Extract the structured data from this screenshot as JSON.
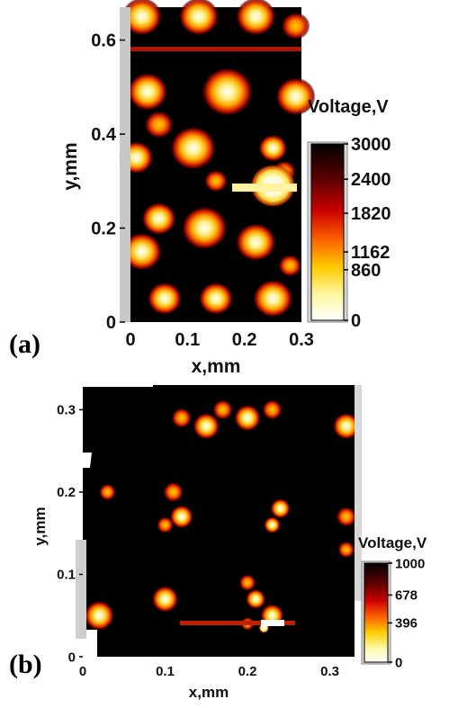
{
  "chart_data": [
    {
      "type": "heatmap",
      "panel_label": "(a)",
      "xlabel": "x,mm",
      "ylabel": "y,mm",
      "xlim": [
        0,
        0.3
      ],
      "ylim": [
        0,
        0.67
      ],
      "x_ticks": [
        "0",
        "0.1",
        "0.2",
        "0.3"
      ],
      "y_ticks": [
        "0",
        "0.2",
        "0.4",
        "0.6"
      ],
      "x_tick_values": [
        0,
        0.1,
        0.2,
        0.3
      ],
      "y_tick_values": [
        0,
        0.2,
        0.4,
        0.6
      ],
      "colorbar": {
        "title": "Voltage,V",
        "range": [
          0,
          3000
        ],
        "ticks": [
          "3000",
          "2400",
          "1820",
          "1162",
          "860",
          "0"
        ],
        "tick_values": [
          3000,
          2400,
          1820,
          1162,
          860,
          0
        ],
        "colors_low_to_high": [
          "#ffffff",
          "#fff7a0",
          "#ffcc00",
          "#ff6600",
          "#cc0000",
          "#5a0000",
          "#000000"
        ]
      },
      "background_value": 3000,
      "spots": [
        {
          "x": 0.02,
          "y": 0.65,
          "r": 0.035,
          "value": 1100
        },
        {
          "x": 0.12,
          "y": 0.65,
          "r": 0.035,
          "value": 1300
        },
        {
          "x": 0.22,
          "y": 0.65,
          "r": 0.035,
          "value": 1100
        },
        {
          "x": 0.29,
          "y": 0.63,
          "r": 0.025,
          "value": 1800
        },
        {
          "x": 0.03,
          "y": 0.49,
          "r": 0.035,
          "value": 1500
        },
        {
          "x": 0.17,
          "y": 0.49,
          "r": 0.045,
          "value": 900
        },
        {
          "x": 0.29,
          "y": 0.48,
          "r": 0.035,
          "value": 1000
        },
        {
          "x": 0.05,
          "y": 0.42,
          "r": 0.025,
          "value": 1700
        },
        {
          "x": 0.11,
          "y": 0.37,
          "r": 0.04,
          "value": 900
        },
        {
          "x": 0.25,
          "y": 0.37,
          "r": 0.025,
          "value": 1600
        },
        {
          "x": 0.27,
          "y": 0.32,
          "r": 0.02,
          "value": 2000
        },
        {
          "x": 0.01,
          "y": 0.35,
          "r": 0.03,
          "value": 1400
        },
        {
          "x": 0.15,
          "y": 0.3,
          "r": 0.02,
          "value": 1800
        },
        {
          "x": 0.25,
          "y": 0.29,
          "r": 0.04,
          "value": 800
        },
        {
          "x": 0.05,
          "y": 0.22,
          "r": 0.03,
          "value": 1400
        },
        {
          "x": 0.13,
          "y": 0.2,
          "r": 0.04,
          "value": 1000
        },
        {
          "x": 0.22,
          "y": 0.17,
          "r": 0.035,
          "value": 1000
        },
        {
          "x": 0.02,
          "y": 0.15,
          "r": 0.035,
          "value": 1100
        },
        {
          "x": 0.28,
          "y": 0.12,
          "r": 0.02,
          "value": 2000
        },
        {
          "x": 0.06,
          "y": 0.05,
          "r": 0.03,
          "value": 1300
        },
        {
          "x": 0.15,
          "y": 0.05,
          "r": 0.03,
          "value": 1300
        },
        {
          "x": 0.25,
          "y": 0.05,
          "r": 0.035,
          "value": 1100
        }
      ]
    },
    {
      "type": "heatmap",
      "panel_label": "(b)",
      "xlabel": "x,mm",
      "ylabel": "y,mm",
      "xlim": [
        0,
        0.33
      ],
      "ylim": [
        0,
        0.33
      ],
      "x_ticks": [
        "0",
        "0.1",
        "0.2",
        "0.3"
      ],
      "y_ticks": [
        "0",
        "0.1",
        "0.2",
        "0.3"
      ],
      "x_tick_values": [
        0,
        0.1,
        0.2,
        0.3
      ],
      "y_tick_values": [
        0,
        0.1,
        0.2,
        0.3
      ],
      "colorbar": {
        "title": "Voltage,V",
        "range": [
          0,
          1000
        ],
        "ticks": [
          "1000",
          "678",
          "396",
          "0"
        ],
        "tick_values": [
          1000,
          678,
          396,
          0
        ],
        "colors_low_to_high": [
          "#ffffff",
          "#fff7a0",
          "#ffcc00",
          "#ff6600",
          "#cc0000",
          "#5a0000",
          "#000000"
        ]
      },
      "background_value": 1000,
      "spots": [
        {
          "x": 0.12,
          "y": 0.29,
          "r": 0.012,
          "value": 600
        },
        {
          "x": 0.15,
          "y": 0.28,
          "r": 0.016,
          "value": 450
        },
        {
          "x": 0.17,
          "y": 0.3,
          "r": 0.012,
          "value": 600
        },
        {
          "x": 0.2,
          "y": 0.29,
          "r": 0.016,
          "value": 500
        },
        {
          "x": 0.23,
          "y": 0.3,
          "r": 0.012,
          "value": 650
        },
        {
          "x": 0.32,
          "y": 0.28,
          "r": 0.016,
          "value": 450
        },
        {
          "x": 0.03,
          "y": 0.2,
          "r": 0.01,
          "value": 750
        },
        {
          "x": 0.11,
          "y": 0.2,
          "r": 0.012,
          "value": 700
        },
        {
          "x": 0.12,
          "y": 0.17,
          "r": 0.014,
          "value": 420
        },
        {
          "x": 0.1,
          "y": 0.16,
          "r": 0.01,
          "value": 700
        },
        {
          "x": 0.24,
          "y": 0.18,
          "r": 0.012,
          "value": 550
        },
        {
          "x": 0.23,
          "y": 0.16,
          "r": 0.01,
          "value": 300
        },
        {
          "x": 0.32,
          "y": 0.17,
          "r": 0.012,
          "value": 700
        },
        {
          "x": 0.32,
          "y": 0.13,
          "r": 0.01,
          "value": 750
        },
        {
          "x": 0.02,
          "y": 0.05,
          "r": 0.018,
          "value": 450
        },
        {
          "x": 0.1,
          "y": 0.07,
          "r": 0.016,
          "value": 550
        },
        {
          "x": 0.2,
          "y": 0.09,
          "r": 0.01,
          "value": 650
        },
        {
          "x": 0.21,
          "y": 0.07,
          "r": 0.012,
          "value": 550
        },
        {
          "x": 0.23,
          "y": 0.05,
          "r": 0.014,
          "value": 480
        },
        {
          "x": 0.2,
          "y": 0.04,
          "r": 0.008,
          "value": 700
        },
        {
          "x": 0.22,
          "y": 0.035,
          "r": 0.006,
          "value": 150
        }
      ]
    }
  ]
}
